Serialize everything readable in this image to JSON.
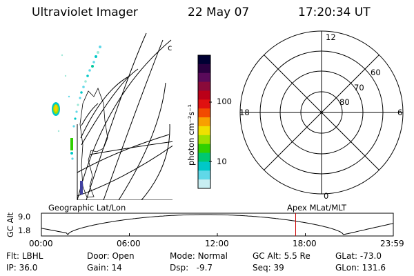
{
  "header": {
    "title": "Ultraviolet Imager",
    "date": "22 May 07",
    "time": "17:20:34 UT"
  },
  "geo_panel": {
    "label": "Geographic Lat/Lon",
    "marker": "c"
  },
  "colorbar": {
    "unit_label": "photon cm⁻²s⁻¹",
    "ticks": [
      "100",
      "10"
    ],
    "colors": [
      "#000033",
      "#2a0040",
      "#5a0a5a",
      "#8a0a3a",
      "#bb0018",
      "#e01010",
      "#f24a00",
      "#f8a000",
      "#f0e000",
      "#9ee000",
      "#30d000",
      "#00c870",
      "#00c8c8",
      "#60d8e8",
      "#c8eef2"
    ]
  },
  "polar_panel": {
    "label": "Apex MLat/MLT",
    "mlt_labels": {
      "top": "12",
      "left": "18",
      "right": "6",
      "bottom": "0"
    },
    "lat_labels": [
      "60",
      "70",
      "80"
    ]
  },
  "timeline": {
    "y_label": "GC Alt",
    "y_ticks": [
      "9.0",
      "1.8"
    ],
    "x_ticks": [
      "00:00",
      "06:00",
      "12:00",
      "18:00",
      "23:59"
    ],
    "current_time_hours": 17.34,
    "marker_color": "#cc0000"
  },
  "status": {
    "flt": {
      "label": "Flt:",
      "value": "LBHL"
    },
    "ip": {
      "label": "IP:",
      "value": "36.0"
    },
    "door": {
      "label": "Door:",
      "value": "Open"
    },
    "gain": {
      "label": "Gain:",
      "value": "14"
    },
    "mode": {
      "label": "Mode:",
      "value": "Normal"
    },
    "dsp": {
      "label": "Dsp:",
      "value": "-9.7"
    },
    "gcalt": {
      "label": "GC Alt:",
      "value": "5.5 Re"
    },
    "seq": {
      "label": "Seq:",
      "value": "39"
    },
    "glat": {
      "label": "GLat:",
      "value": "-73.0"
    },
    "glon": {
      "label": "GLon:",
      "value": "131.6"
    }
  }
}
